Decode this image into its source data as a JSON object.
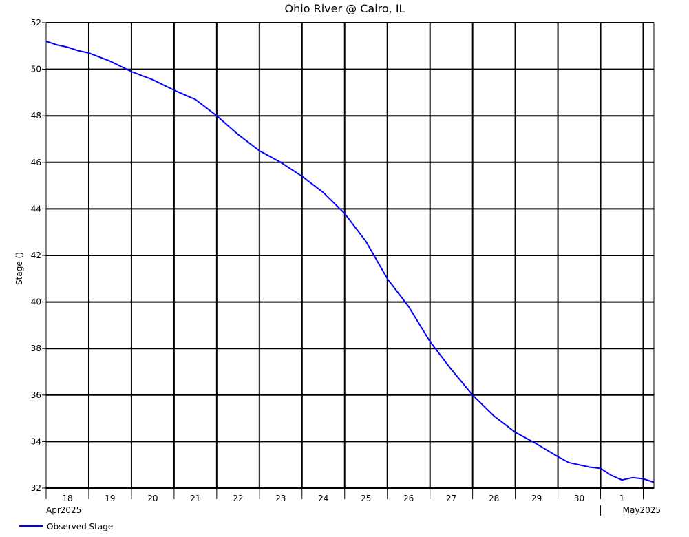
{
  "chart_data": {
    "type": "line",
    "title": "Ohio River @ Cairo, IL",
    "ylabel": "Stage ()",
    "xlabel": "",
    "ylim": [
      32,
      52
    ],
    "yticks": [
      32,
      34,
      36,
      38,
      40,
      42,
      44,
      46,
      48,
      50,
      52
    ],
    "xlim": [
      "2025-04-18T00:00",
      "2025-05-02T06:00"
    ],
    "x_day_ticks": [
      "18",
      "19",
      "20",
      "21",
      "22",
      "23",
      "24",
      "25",
      "26",
      "27",
      "28",
      "29",
      "30",
      "1"
    ],
    "x_month_labels": [
      "Apr2025",
      "May2025"
    ],
    "grid": true,
    "legend_position": "bottom-left",
    "colors": {
      "line": "#0000ff",
      "grid": "#000000"
    },
    "series": [
      {
        "name": "Observed Stage",
        "x": [
          "2025-04-18T00:00",
          "2025-04-18T06:00",
          "2025-04-18T12:00",
          "2025-04-18T18:00",
          "2025-04-19T00:00",
          "2025-04-19T12:00",
          "2025-04-20T00:00",
          "2025-04-20T12:00",
          "2025-04-21T00:00",
          "2025-04-21T12:00",
          "2025-04-22T00:00",
          "2025-04-22T12:00",
          "2025-04-23T00:00",
          "2025-04-23T12:00",
          "2025-04-24T00:00",
          "2025-04-24T12:00",
          "2025-04-25T00:00",
          "2025-04-25T12:00",
          "2025-04-26T00:00",
          "2025-04-26T12:00",
          "2025-04-27T00:00",
          "2025-04-27T12:00",
          "2025-04-28T00:00",
          "2025-04-28T12:00",
          "2025-04-29T00:00",
          "2025-04-29T12:00",
          "2025-04-30T00:00",
          "2025-04-30T06:00",
          "2025-04-30T12:00",
          "2025-04-30T18:00",
          "2025-05-01T00:00",
          "2025-05-01T06:00",
          "2025-05-01T12:00",
          "2025-05-01T18:00",
          "2025-05-02T00:00",
          "2025-05-02T06:00"
        ],
        "y": [
          51.2,
          51.05,
          50.95,
          50.8,
          50.7,
          50.35,
          49.9,
          49.55,
          49.1,
          48.7,
          48.0,
          47.2,
          46.5,
          46.0,
          45.4,
          44.7,
          43.8,
          42.6,
          41.0,
          39.8,
          38.3,
          37.1,
          36.0,
          35.1,
          34.4,
          33.9,
          33.35,
          33.1,
          33.0,
          32.9,
          32.85,
          32.55,
          32.35,
          32.45,
          32.4,
          32.25
        ]
      }
    ]
  }
}
